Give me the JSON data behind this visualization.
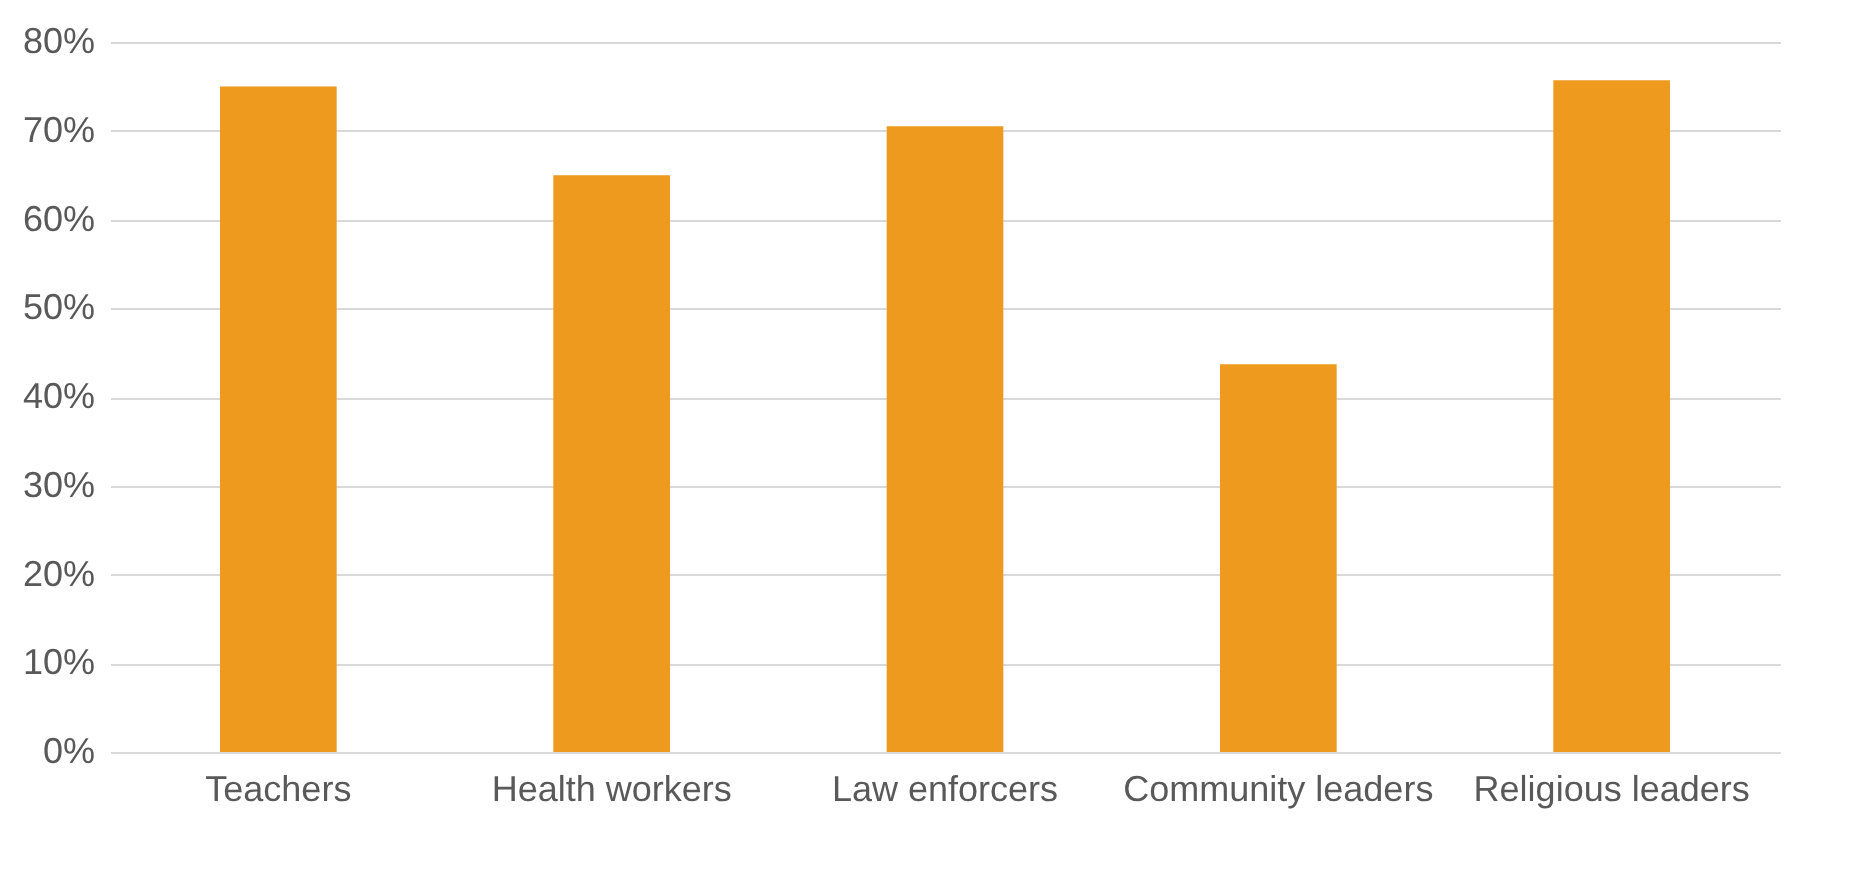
{
  "chart_data": {
    "type": "bar",
    "categories": [
      "Teachers",
      "Health workers",
      "Law enforcers",
      "Community leaders",
      "Religious leaders"
    ],
    "values": [
      75,
      65,
      70.5,
      43.7,
      75.7
    ],
    "color": "#ed9a1f",
    "ylim": [
      0,
      80
    ],
    "yticks": [
      {
        "value": 0,
        "label": "0%"
      },
      {
        "value": 10,
        "label": "10%"
      },
      {
        "value": 20,
        "label": "20%"
      },
      {
        "value": 30,
        "label": "30%"
      },
      {
        "value": 40,
        "label": "40%"
      },
      {
        "value": 50,
        "label": "50%"
      },
      {
        "value": 60,
        "label": "60%"
      },
      {
        "value": 70,
        "label": "70%"
      },
      {
        "value": 80,
        "label": "80%"
      }
    ],
    "grid": true
  }
}
